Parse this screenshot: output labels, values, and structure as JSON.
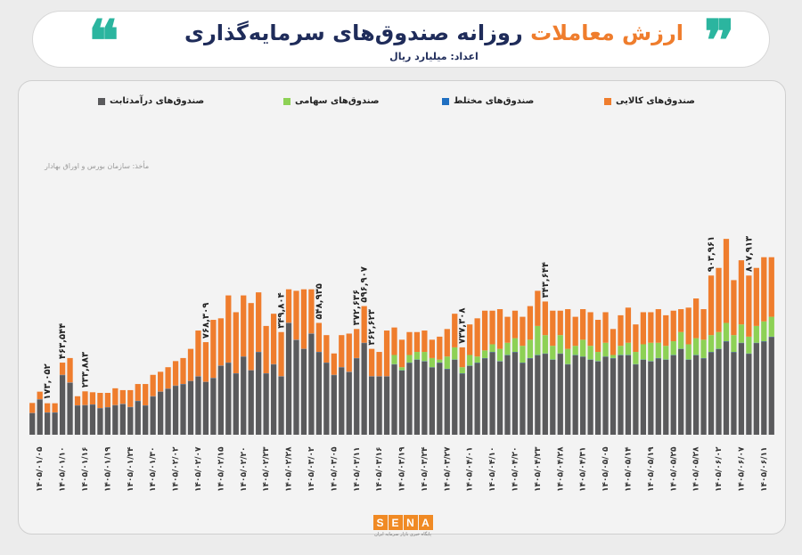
{
  "header": {
    "title_part1": "ارزش معاملات",
    "title_part2": "روزانه صندوق‌های سرمایه‌گذاری",
    "subtitle": "اعداد: میلیارد ریال",
    "quote_glyph_left": "❝",
    "quote_glyph_right": "❞"
  },
  "legend": {
    "fixed_income": "صندوق‌های درآمدثابت",
    "equity": "صندوق‌های سهامی",
    "mixed": "صندوق‌های مختلط",
    "commodity": "صندوق‌های کالایی"
  },
  "source": "مأخذ: سازمان بورس و اوراق بهادار",
  "colors": {
    "fixed_income": "#5a5a5c",
    "equity": "#8dd155",
    "mixed": "#1f6fc1",
    "commodity": "#ef7d2d",
    "accent_teal": "#2bb59f",
    "title_navy": "#1f2c5a"
  },
  "logo": {
    "letters": [
      "S",
      "E",
      "N",
      "A"
    ],
    "tagline": "پایگاه خبری بازار سرمایه ایران"
  },
  "chart_data": {
    "type": "bar",
    "stacked": true,
    "grid": false,
    "x_tick_labels": [
      "۱۴۰۵/۰۱/۰۵",
      "۱۴۰۵/۰۱/۱۰",
      "۱۴۰۵/۰۱/۱۶",
      "۱۴۰۵/۰۱/۱۹",
      "۱۴۰۵/۰۱/۲۴",
      "۱۴۰۵/۰۱/۳۰",
      "۱۴۰۵/۰۲/۰۲",
      "۱۴۰۵/۰۲/۰۷",
      "۱۴۰۵/۰۲/۱۵",
      "۱۴۰۵/۰۲/۲۰",
      "۱۴۰۵/۰۲/۲۳",
      "۱۴۰۵/۰۲/۲۸",
      "۱۴۰۵/۰۳/۰۲",
      "۱۴۰۵/۰۳/۰۵",
      "۱۴۰۵/۰۳/۱۱",
      "۱۴۰۵/۰۳/۱۶",
      "۱۴۰۵/۰۳/۱۹",
      "۱۴۰۵/۰۳/۲۴",
      "۱۴۰۵/۰۳/۲۷",
      "۱۴۰۵/۰۴/۰۱",
      "۱۴۰۵/۰۴/۱۰",
      "۱۴۰۵/۰۴/۲۰",
      "۱۴۰۵/۰۴/۲۳",
      "۱۴۰۵/۰۴/۲۸",
      "۱۴۰۵/۰۴/۳۱",
      "۱۴۰۵/۰۵/۰۵",
      "۱۴۰۵/۰۵/۱۴",
      "۱۴۰۵/۰۵/۱۹",
      "۱۴۰۵/۰۵/۲۵",
      "۱۴۰۵/۰۵/۲۸",
      "۱۴۰۵/۰۶/۰۲",
      "۱۴۰۵/۰۶/۰۷",
      "۱۴۰۵/۰۶/۱۱"
    ],
    "ylim": [
      0,
      1000
    ],
    "series": [
      {
        "name": "صندوق‌های درآمدثابت",
        "values": [
          70,
          115,
          72,
          72,
          195,
          170,
          95,
          96,
          98,
          86,
          89,
          96,
          100,
          90,
          110,
          95,
          125,
          140,
          150,
          160,
          165,
          175,
          190,
          172,
          185,
          225,
          235,
          200,
          255,
          210,
          270,
          200,
          230,
          190,
          365,
          310,
          280,
          330,
          270,
          235,
          195,
          220,
          205,
          250,
          300,
          190,
          190,
          190,
          230,
          210,
          235,
          245,
          240,
          220,
          235,
          215,
          245,
          200,
          225,
          235,
          250,
          270,
          240,
          260,
          270,
          235,
          250,
          260,
          265,
          245,
          265,
          230,
          260,
          255,
          245,
          240,
          255,
          250,
          260,
          260,
          230,
          245,
          240,
          250,
          245,
          260,
          280,
          245,
          260,
          250,
          270,
          280,
          305,
          270,
          300,
          265,
          300,
          305,
          320
        ]
      },
      {
        "name": "صندوق‌های مختلط",
        "values": [
          1,
          1,
          1,
          1,
          1,
          1,
          1,
          1,
          1,
          1,
          1,
          1,
          1,
          1,
          1,
          1,
          1,
          1,
          1,
          1,
          1,
          1,
          1,
          1,
          1,
          1,
          1,
          1,
          1,
          1,
          1,
          1,
          1,
          1,
          1,
          1,
          1,
          1,
          1,
          1,
          1,
          1,
          1,
          1,
          1,
          1,
          1,
          1,
          1,
          1,
          1,
          1,
          1,
          1,
          1,
          1,
          1,
          1,
          1,
          1,
          1,
          1,
          1,
          1,
          1,
          1,
          1,
          1,
          1,
          1,
          1,
          1,
          1,
          1,
          1,
          1,
          1,
          1,
          1,
          1,
          1,
          1,
          1,
          1,
          1,
          1,
          1,
          1,
          1,
          1,
          1,
          1,
          1,
          1,
          1,
          1,
          1,
          1,
          1
        ]
      },
      {
        "name": "صندوق‌های سهامی",
        "values": [
          0,
          0,
          0,
          0,
          0,
          0,
          0,
          0,
          0,
          0,
          0,
          0,
          0,
          0,
          0,
          0,
          0,
          0,
          0,
          0,
          0,
          0,
          0,
          0,
          0,
          0,
          0,
          0,
          0,
          0,
          0,
          0,
          0,
          0,
          0,
          0,
          0,
          0,
          0,
          0,
          0,
          0,
          0,
          0,
          0,
          0,
          0,
          0,
          30,
          10,
          25,
          25,
          30,
          30,
          10,
          40,
          40,
          20,
          35,
          20,
          25,
          25,
          40,
          40,
          45,
          55,
          60,
          95,
          60,
          45,
          60,
          50,
          30,
          55,
          45,
          30,
          45,
          10,
          30,
          40,
          40,
          50,
          60,
          50,
          45,
          45,
          55,
          50,
          55,
          60,
          55,
          55,
          60,
          55,
          60,
          55,
          55,
          65,
          65
        ]
      },
      {
        "name": "صندوق‌های کالایی",
        "values": [
          33,
          25,
          30,
          30,
          40,
          80,
          30,
          45,
          40,
          50,
          47,
          55,
          45,
          55,
          55,
          70,
          70,
          65,
          70,
          80,
          85,
          105,
          150,
          130,
          190,
          155,
          220,
          200,
          200,
          220,
          195,
          155,
          165,
          145,
          110,
          160,
          195,
          145,
          95,
          90,
          70,
          105,
          125,
          95,
          120,
          90,
          80,
          150,
          90,
          90,
          75,
          65,
          70,
          60,
          75,
          90,
          110,
          65,
          100,
          125,
          130,
          110,
          130,
          85,
          90,
          95,
          110,
          115,
          110,
          115,
          80,
          130,
          95,
          100,
          110,
          105,
          100,
          85,
          100,
          115,
          90,
          105,
          100,
          110,
          100,
          100,
          75,
          120,
          130,
          100,
          195,
          210,
          275,
          180,
          210,
          200,
          190,
          210,
          195
        ]
      }
    ],
    "annotations": [
      {
        "bar": 4,
        "text": "۱۷۳,۰۵۲"
      },
      {
        "bar": 7,
        "text": "۴۶۳,۵۴۴"
      },
      {
        "bar": 12,
        "text": "۲۳۳,۸۸۳"
      },
      {
        "bar": 37,
        "text": "۷۶۸,۳۰۹"
      },
      {
        "bar": 54,
        "text": "۳۴۹,۸۰۴"
      },
      {
        "bar": 62,
        "text": "۵۴۸,۹۳۵"
      },
      {
        "bar": 69,
        "text": "۳۷۲,۶۳۶"
      },
      {
        "bar": 71,
        "text": "۵۹۶,۹۰۷"
      },
      {
        "bar": 73,
        "text": "۳۶۲,۶۲۳"
      },
      {
        "bar": 92,
        "text": "۷۳۷,۳۰۸"
      },
      {
        "bar": 110,
        "text": "۳۴۳,۶۴۴"
      },
      {
        "bar": 146,
        "text": "۹۰۳,۹۶۱"
      },
      {
        "bar": 154,
        "text": "۸۰۷,۹۱۳"
      }
    ]
  }
}
